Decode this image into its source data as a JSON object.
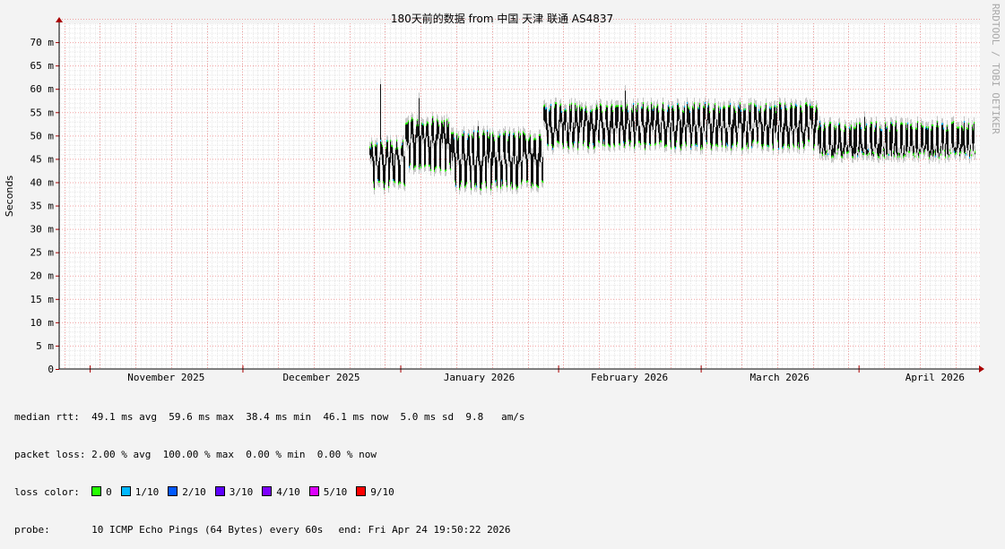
{
  "chart_data": {
    "type": "line",
    "title": "180天前的数据 from 中国 天津 联通 AS4837",
    "ylabel": "Seconds",
    "ylim": [
      0,
      75
    ],
    "yticks": [
      "0",
      "5 m",
      "10 m",
      "15 m",
      "20 m",
      "25 m",
      "30 m",
      "35 m",
      "40 m",
      "45 m",
      "50 m",
      "55 m",
      "60 m",
      "65 m",
      "70 m"
    ],
    "xticks": [
      "November 2025",
      "December 2025",
      "January 2026",
      "February 2026",
      "March 2026",
      "April 2026"
    ],
    "grid": true,
    "series": [
      {
        "name": "median rtt",
        "unit": "ms",
        "segments": [
          {
            "start": "2025-12-26",
            "end": "2026-01-02",
            "min": 38.5,
            "max": 49,
            "spike": 61,
            "median": 45
          },
          {
            "start": "2026-01-02",
            "end": "2026-01-11",
            "min": 42,
            "max": 54,
            "spike": 58,
            "median": 49
          },
          {
            "start": "2026-01-11",
            "end": "2026-01-29",
            "min": 38.4,
            "max": 51,
            "spike": 52,
            "median": 45
          },
          {
            "start": "2026-01-29",
            "end": "2026-03-24",
            "min": 47,
            "max": 57,
            "spike": 59.6,
            "median": 52
          },
          {
            "start": "2026-03-24",
            "end": "2026-04-24",
            "min": 45,
            "max": 53,
            "spike": 54,
            "median": 47
          }
        ]
      }
    ]
  },
  "watermark": "RRDTOOL / TOBI OETIKER",
  "stats": {
    "rtt_label": "median rtt:",
    "rtt_values": "49.1 ms avg  59.6 ms max  38.4 ms min  46.1 ms now  5.0 ms sd  9.8   am/s",
    "loss_label": "packet loss:",
    "loss_values": "2.00 % avg  100.00 % max  0.00 % min  0.00 % now",
    "color_label": "loss color:",
    "loss_colors": [
      {
        "label": "0",
        "color": "#26ff00"
      },
      {
        "label": "1/10",
        "color": "#00b8ff"
      },
      {
        "label": "2/10",
        "color": "#0059ff"
      },
      {
        "label": "3/10",
        "color": "#5e00ff"
      },
      {
        "label": "4/10",
        "color": "#7e00ff"
      },
      {
        "label": "5/10",
        "color": "#dd00ff"
      },
      {
        "label": "9/10",
        "color": "#ff0000"
      }
    ],
    "probe_label": "probe:",
    "probe_value": "10 ICMP Echo Pings (64 Bytes) every 60s",
    "end_time": "end: Fri Apr 24 19:50:22 2026"
  }
}
